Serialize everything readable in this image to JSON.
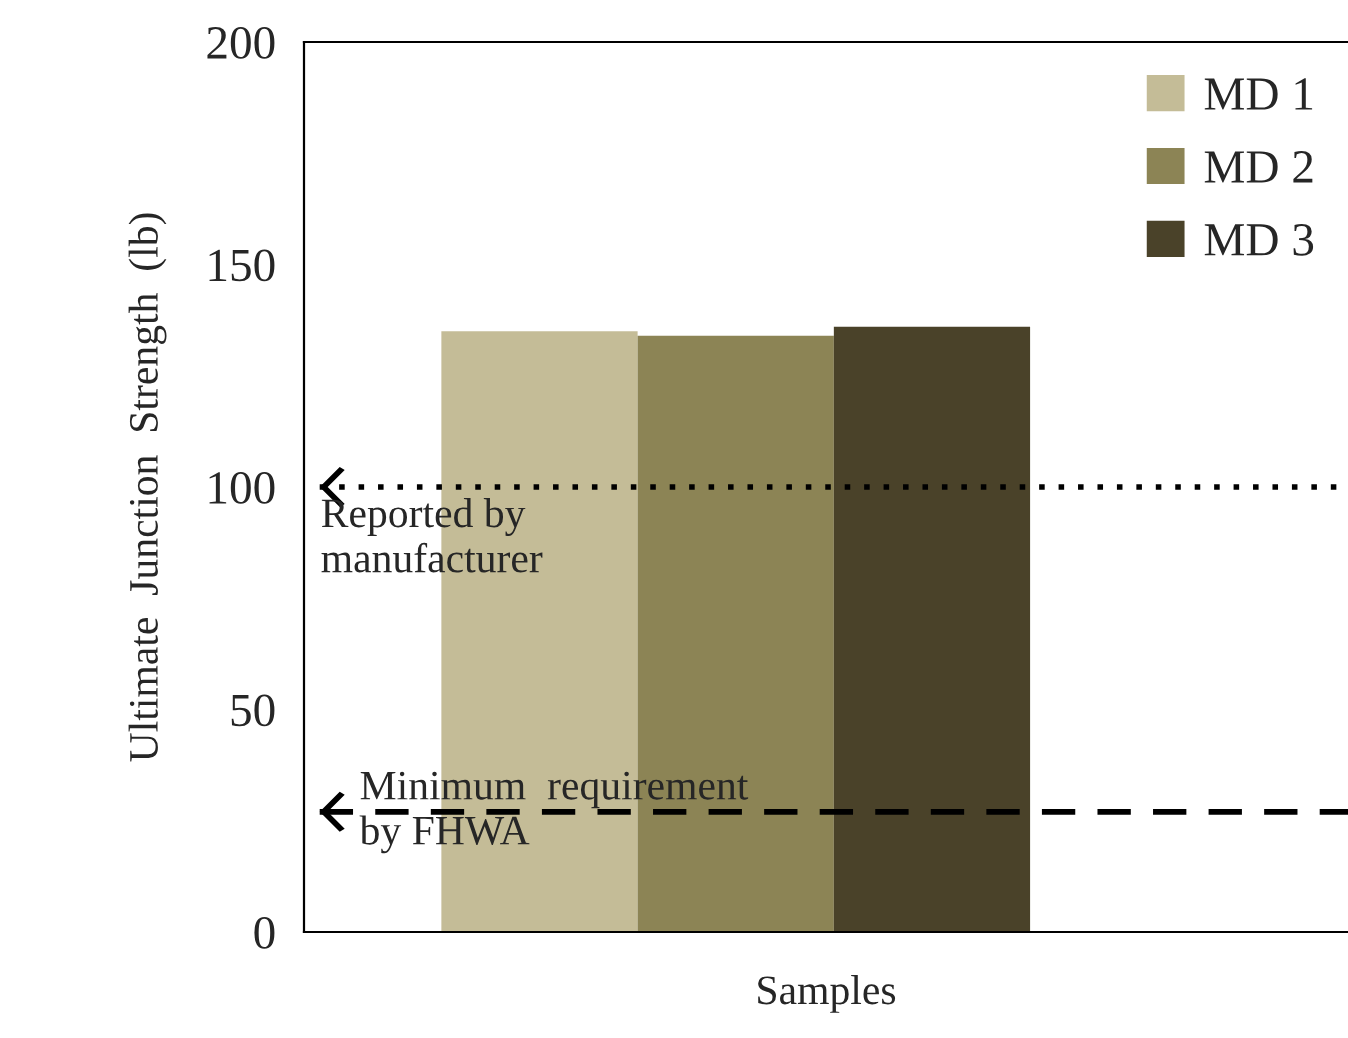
{
  "chart_data": {
    "type": "bar",
    "xlabel": "Samples",
    "ylabel": "Ultimate  Junction  Strength  (lb)",
    "categories": [
      null
    ],
    "series": [
      {
        "name": "MD 1",
        "color": "#c4bc97",
        "values": [
          135
        ]
      },
      {
        "name": "MD 2",
        "color": "#8c8455",
        "values": [
          134
        ]
      },
      {
        "name": "MD 3",
        "color": "#4a4229",
        "values": [
          136
        ]
      }
    ],
    "ylim": [
      0,
      200
    ],
    "yticks": [
      0,
      50,
      100,
      150,
      200
    ],
    "grid": false,
    "legend": "top right",
    "ref_lines": [
      {
        "axis": "y",
        "value": 100,
        "label": "Reported by\nmanufacturer",
        "line_style": "dotted",
        "color": "#000000"
      },
      {
        "axis": "y",
        "value": 27,
        "label": "Minimum  requirement\nby FHWA",
        "line_style": "dashed",
        "color": "#000000"
      }
    ]
  }
}
